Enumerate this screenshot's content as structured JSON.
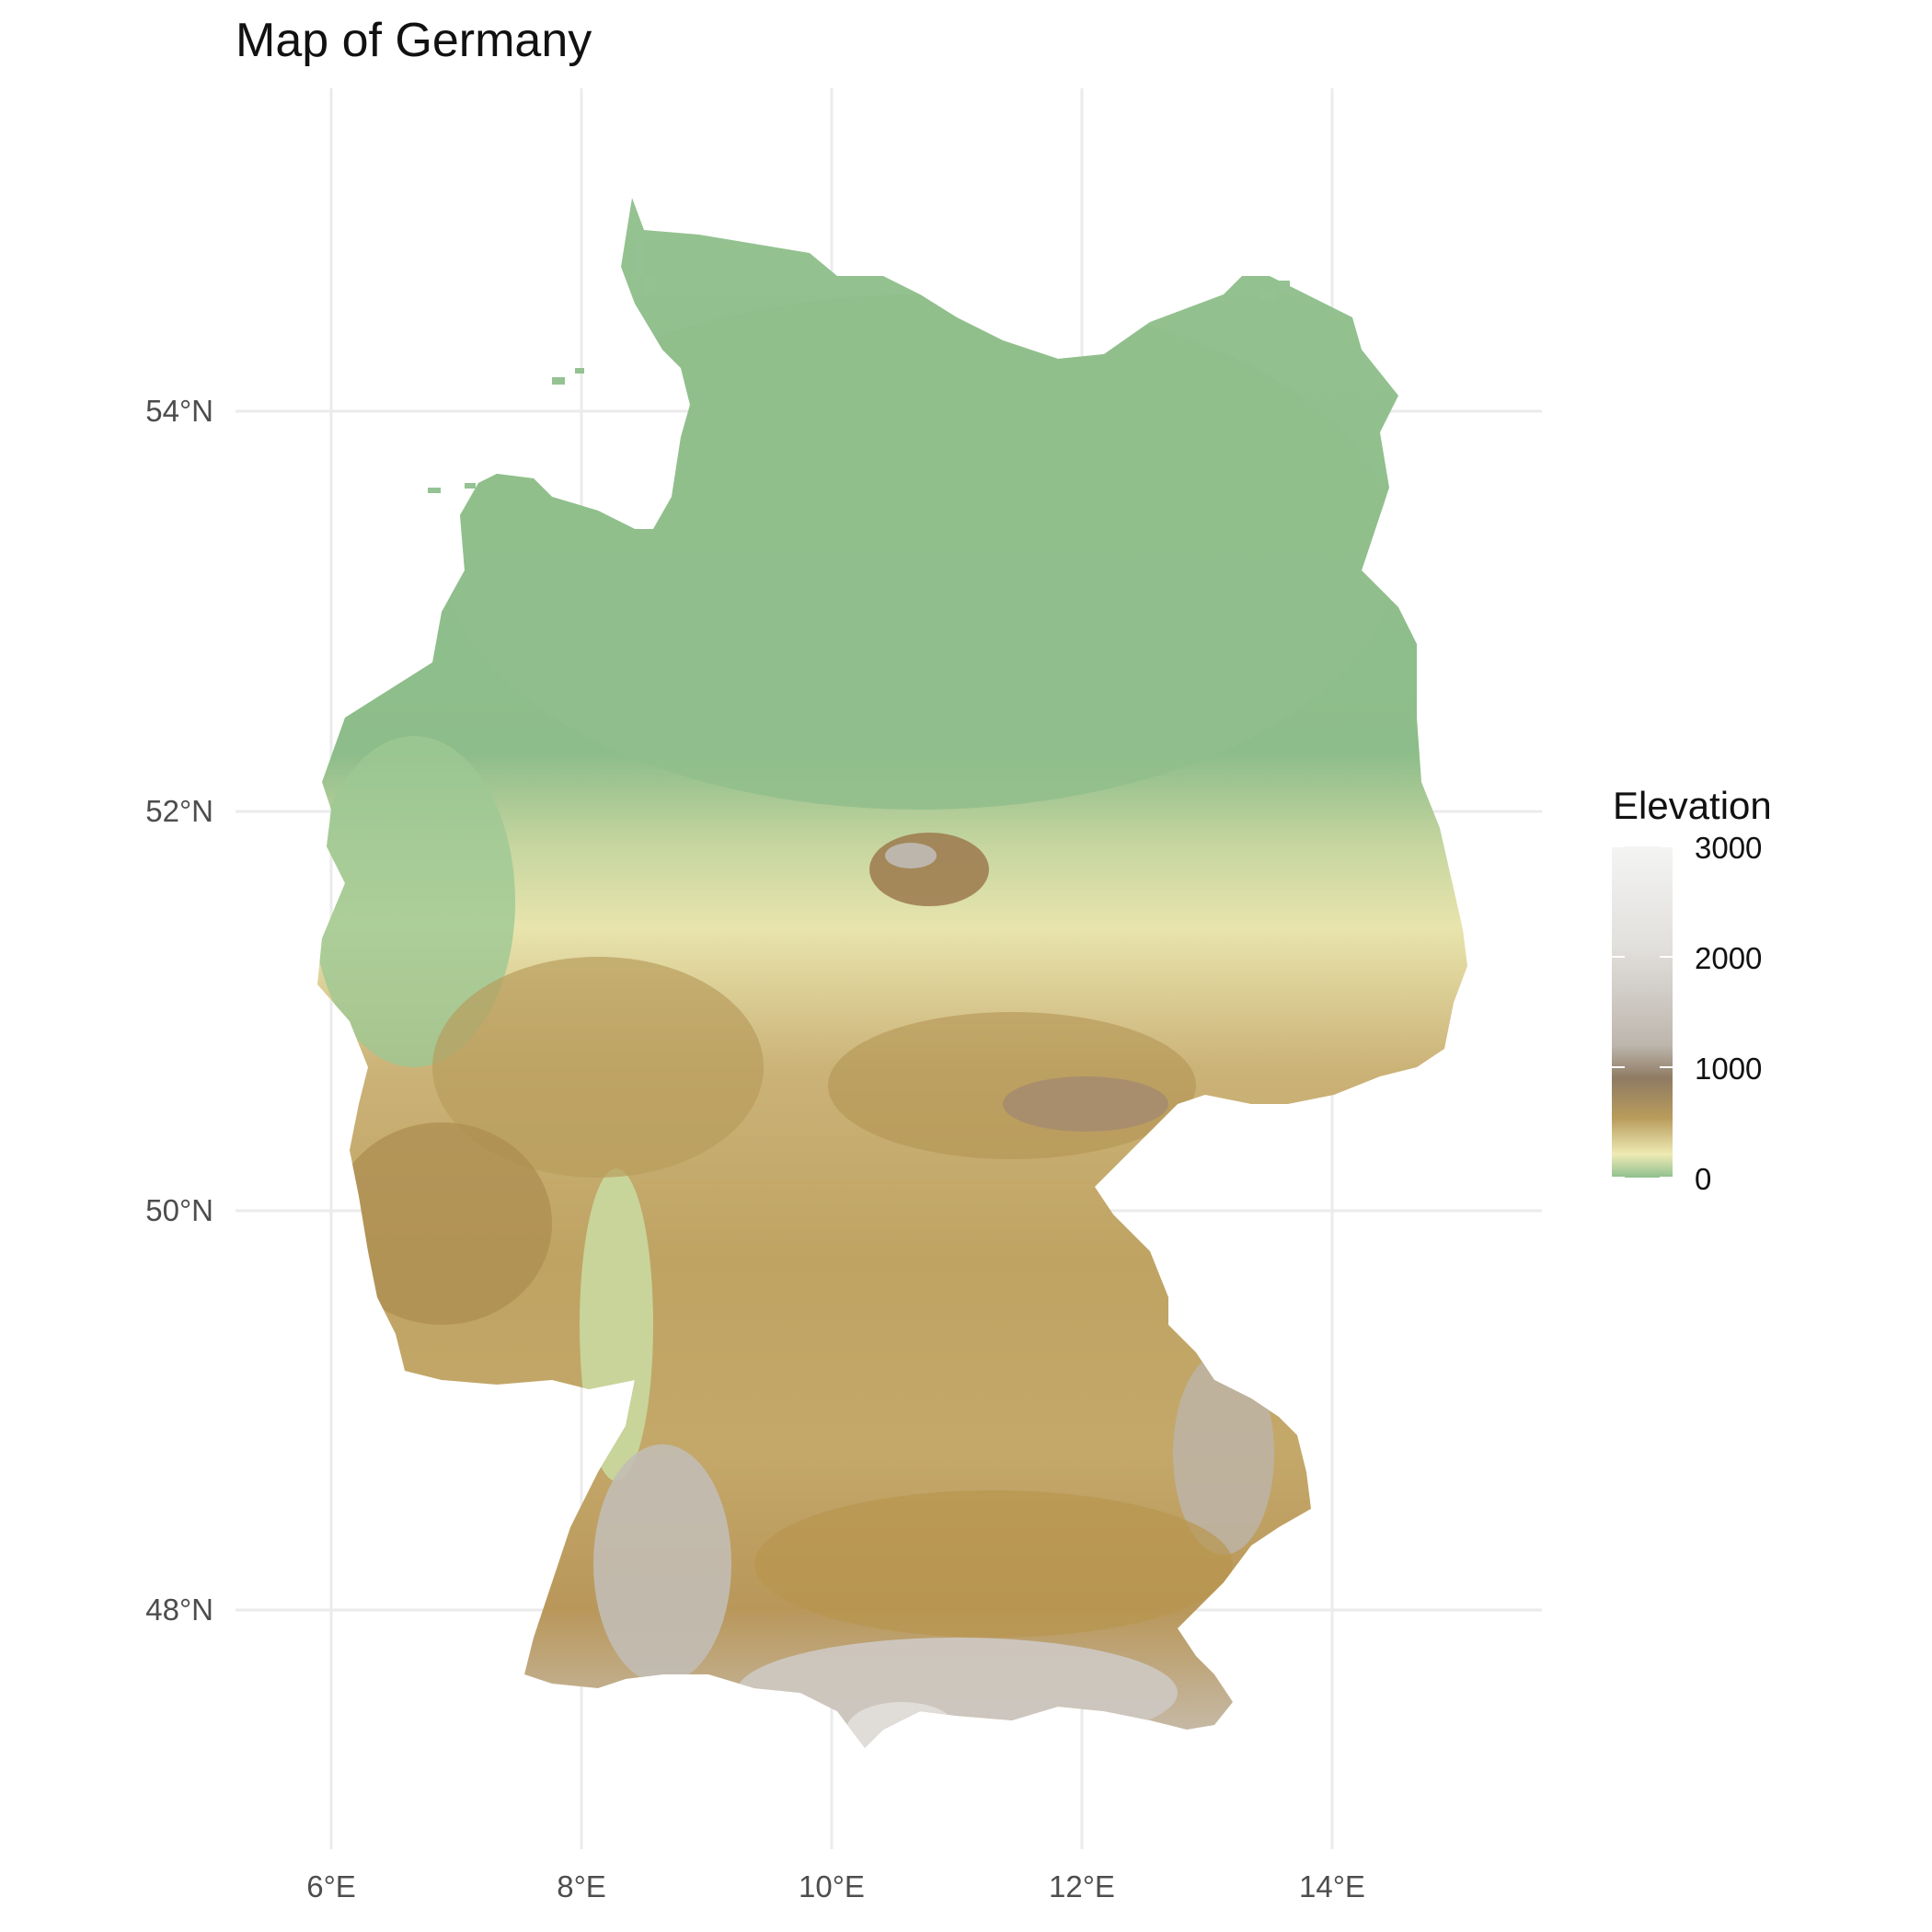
{
  "title": "Map of Germany",
  "axes": {
    "x_ticks": [
      "6°E",
      "8°E",
      "10°E",
      "12°E",
      "14°E"
    ],
    "y_ticks": [
      "54°N",
      "52°N",
      "50°N",
      "48°N"
    ]
  },
  "legend": {
    "title": "Elevation",
    "labels": [
      "3000",
      "2000",
      "1000",
      "0"
    ],
    "scale_min": 0,
    "scale_max": 3000
  },
  "colors": {
    "lowland": "#8fc08e",
    "plain": "#eeeab4",
    "hills": "#b89c5c",
    "mountain": "#bdb6ad",
    "peak": "#f3f3f2",
    "grid": "#ebebeb"
  }
}
